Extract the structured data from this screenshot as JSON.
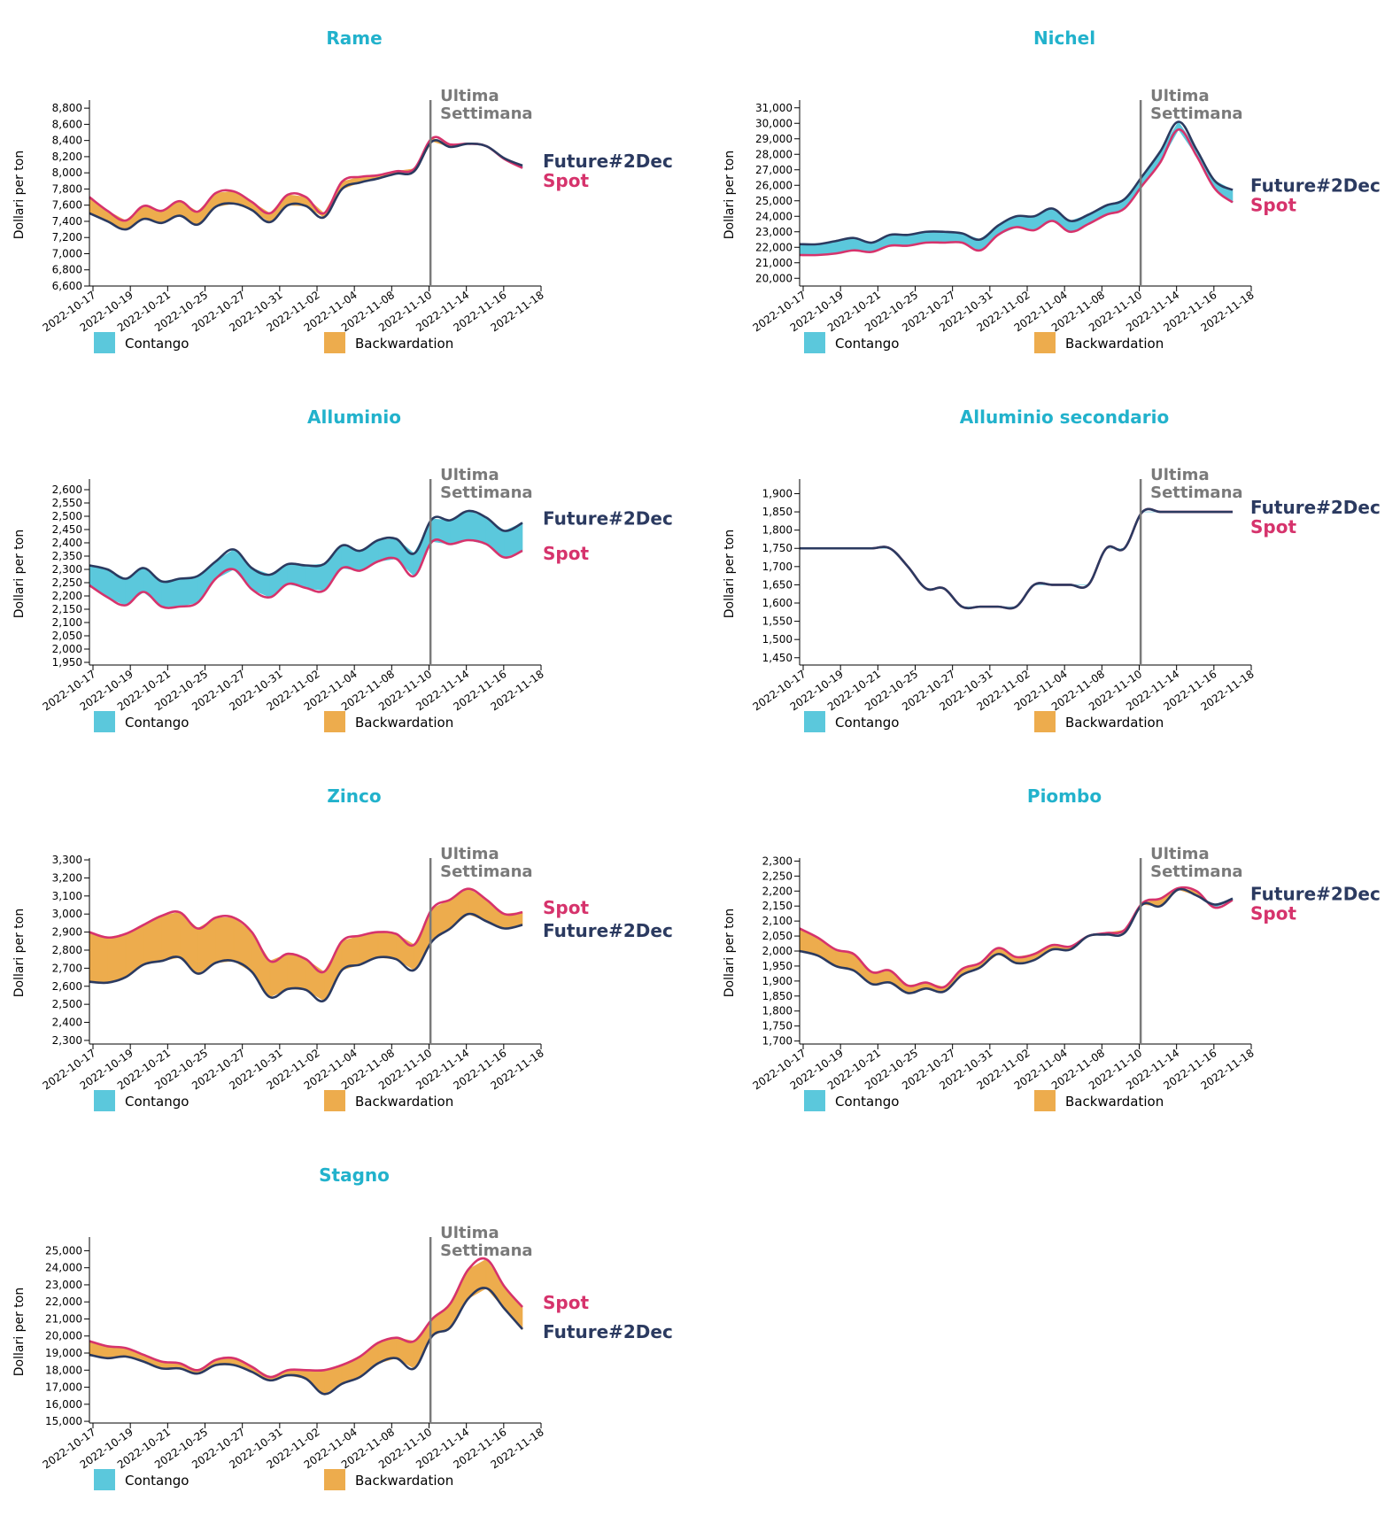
{
  "colors": {
    "title": "#22b2cc",
    "future": "#2b3a60",
    "spot": "#d6336c",
    "contango": "#5bc8dc",
    "backwardation": "#edac4d",
    "marker": "#7a7a7a"
  },
  "common": {
    "y_label": "Dollari per ton",
    "marker_line1": "Ultima",
    "marker_line2": "Settimana",
    "legend_contango": "Contango",
    "legend_backwardation": "Backwardation",
    "future_label": "Future#2Dec",
    "spot_label": "Spot",
    "marker_date_index": 19,
    "x_tick_labels": [
      "2022-10-17",
      "2022-10-19",
      "2022-10-21",
      "2022-10-25",
      "2022-10-27",
      "2022-10-31",
      "2022-11-02",
      "2022-11-04",
      "2022-11-08",
      "2022-11-10",
      "2022-11-14",
      "2022-11-16",
      "2022-11-18"
    ]
  },
  "chart_data": [
    {
      "type": "area",
      "title": "Rame",
      "ylabel": "Dollari per ton",
      "ylim": [
        6600,
        8900
      ],
      "ytick_step": 200,
      "x": [
        "2022-10-17",
        "2022-10-18",
        "2022-10-19",
        "2022-10-20",
        "2022-10-21",
        "2022-10-24",
        "2022-10-25",
        "2022-10-26",
        "2022-10-27",
        "2022-10-28",
        "2022-10-31",
        "2022-11-01",
        "2022-11-02",
        "2022-11-03",
        "2022-11-04",
        "2022-11-07",
        "2022-11-08",
        "2022-11-09",
        "2022-11-10",
        "2022-11-11",
        "2022-11-14",
        "2022-11-15",
        "2022-11-16",
        "2022-11-17",
        "2022-11-18"
      ],
      "series": [
        {
          "name": "Future#2Dec",
          "values": [
            7500,
            7400,
            7300,
            7430,
            7380,
            7470,
            7360,
            7580,
            7620,
            7540,
            7390,
            7600,
            7590,
            7450,
            7800,
            7880,
            7930,
            7990,
            8020,
            8390,
            8320,
            8360,
            8330,
            8180,
            8090
          ]
        },
        {
          "name": "Spot",
          "values": [
            7700,
            7530,
            7410,
            7590,
            7530,
            7650,
            7520,
            7750,
            7770,
            7640,
            7500,
            7730,
            7700,
            7500,
            7890,
            7950,
            7970,
            8020,
            8050,
            8430,
            8350,
            8360,
            8330,
            8170,
            8060
          ]
        }
      ]
    },
    {
      "type": "area",
      "title": "Nichel",
      "ylabel": "Dollari per ton",
      "ylim": [
        19500,
        31500
      ],
      "ytick_step": 1000,
      "x": [
        "2022-10-17",
        "2022-10-18",
        "2022-10-19",
        "2022-10-20",
        "2022-10-21",
        "2022-10-24",
        "2022-10-25",
        "2022-10-26",
        "2022-10-27",
        "2022-10-28",
        "2022-10-31",
        "2022-11-01",
        "2022-11-02",
        "2022-11-03",
        "2022-11-04",
        "2022-11-07",
        "2022-11-08",
        "2022-11-09",
        "2022-11-10",
        "2022-11-11",
        "2022-11-14",
        "2022-11-15",
        "2022-11-16",
        "2022-11-17",
        "2022-11-18"
      ],
      "series": [
        {
          "name": "Future#2Dec",
          "values": [
            22200,
            22200,
            22400,
            22600,
            22300,
            22800,
            22800,
            23000,
            23000,
            22900,
            22500,
            23400,
            24000,
            24000,
            24500,
            23700,
            24100,
            24700,
            25100,
            26600,
            28200,
            30100,
            28300,
            26300,
            25700
          ]
        },
        {
          "name": "Spot",
          "values": [
            21500,
            21500,
            21600,
            21800,
            21700,
            22100,
            22100,
            22300,
            22300,
            22300,
            21800,
            22800,
            23300,
            23100,
            23700,
            23000,
            23500,
            24100,
            24500,
            26000,
            27500,
            29600,
            27900,
            25800,
            24900
          ]
        }
      ]
    },
    {
      "type": "area",
      "title": "Alluminio",
      "ylabel": "Dollari per ton",
      "ylim": [
        1940,
        2640
      ],
      "ytick_step": 50,
      "x": [
        "2022-10-17",
        "2022-10-18",
        "2022-10-19",
        "2022-10-20",
        "2022-10-21",
        "2022-10-24",
        "2022-10-25",
        "2022-10-26",
        "2022-10-27",
        "2022-10-28",
        "2022-10-31",
        "2022-11-01",
        "2022-11-02",
        "2022-11-03",
        "2022-11-04",
        "2022-11-07",
        "2022-11-08",
        "2022-11-09",
        "2022-11-10",
        "2022-11-11",
        "2022-11-14",
        "2022-11-15",
        "2022-11-16",
        "2022-11-17",
        "2022-11-18"
      ],
      "series": [
        {
          "name": "Future#2Dec",
          "values": [
            2315,
            2300,
            2265,
            2305,
            2255,
            2265,
            2275,
            2330,
            2375,
            2305,
            2280,
            2320,
            2315,
            2320,
            2390,
            2370,
            2410,
            2415,
            2360,
            2490,
            2485,
            2520,
            2495,
            2445,
            2475
          ]
        },
        {
          "name": "Spot",
          "values": [
            2240,
            2195,
            2165,
            2215,
            2160,
            2160,
            2175,
            2265,
            2300,
            2225,
            2195,
            2245,
            2230,
            2220,
            2305,
            2295,
            2330,
            2340,
            2275,
            2405,
            2395,
            2410,
            2395,
            2345,
            2370
          ]
        }
      ]
    },
    {
      "type": "area",
      "title": "Alluminio secondario",
      "ylabel": "Dollari per ton",
      "ylim": [
        1430,
        1940
      ],
      "ytick_step": 50,
      "x": [
        "2022-10-17",
        "2022-10-18",
        "2022-10-19",
        "2022-10-20",
        "2022-10-21",
        "2022-10-24",
        "2022-10-25",
        "2022-10-26",
        "2022-10-27",
        "2022-10-28",
        "2022-10-31",
        "2022-11-01",
        "2022-11-02",
        "2022-11-03",
        "2022-11-04",
        "2022-11-07",
        "2022-11-08",
        "2022-11-09",
        "2022-11-10",
        "2022-11-11",
        "2022-11-14",
        "2022-11-15",
        "2022-11-16",
        "2022-11-17",
        "2022-11-18"
      ],
      "series": [
        {
          "name": "Future#2Dec",
          "values": [
            1750,
            1750,
            1750,
            1750,
            1750,
            1750,
            1700,
            1640,
            1640,
            1590,
            1590,
            1590,
            1590,
            1650,
            1650,
            1650,
            1650,
            1750,
            1750,
            1850,
            1850,
            1850,
            1850,
            1850,
            1850
          ]
        },
        {
          "name": "Spot",
          "values": [
            1750,
            1750,
            1750,
            1750,
            1750,
            1750,
            1700,
            1640,
            1640,
            1590,
            1590,
            1590,
            1590,
            1650,
            1650,
            1650,
            1650,
            1750,
            1750,
            1850,
            1850,
            1850,
            1850,
            1850,
            1850
          ]
        }
      ]
    },
    {
      "type": "area",
      "title": "Zinco",
      "ylabel": "Dollari per ton",
      "ylim": [
        2280,
        3310
      ],
      "ytick_step": 100,
      "x": [
        "2022-10-17",
        "2022-10-18",
        "2022-10-19",
        "2022-10-20",
        "2022-10-21",
        "2022-10-24",
        "2022-10-25",
        "2022-10-26",
        "2022-10-27",
        "2022-10-28",
        "2022-10-31",
        "2022-11-01",
        "2022-11-02",
        "2022-11-03",
        "2022-11-04",
        "2022-11-07",
        "2022-11-08",
        "2022-11-09",
        "2022-11-10",
        "2022-11-11",
        "2022-11-14",
        "2022-11-15",
        "2022-11-16",
        "2022-11-17",
        "2022-11-18"
      ],
      "series": [
        {
          "name": "Future#2Dec",
          "values": [
            2625,
            2620,
            2650,
            2720,
            2740,
            2760,
            2670,
            2730,
            2740,
            2680,
            2540,
            2585,
            2580,
            2520,
            2690,
            2720,
            2760,
            2750,
            2690,
            2850,
            2920,
            3000,
            2960,
            2920,
            2940
          ]
        },
        {
          "name": "Spot",
          "values": [
            2900,
            2870,
            2890,
            2940,
            2990,
            3010,
            2920,
            2980,
            2980,
            2900,
            2740,
            2780,
            2750,
            2680,
            2850,
            2880,
            2900,
            2890,
            2830,
            3030,
            3080,
            3140,
            3080,
            3000,
            3010
          ]
        }
      ]
    },
    {
      "type": "area",
      "title": "Piombo",
      "ylabel": "Dollari per ton",
      "ylim": [
        1690,
        2310
      ],
      "ytick_step": 50,
      "x": [
        "2022-10-17",
        "2022-10-18",
        "2022-10-19",
        "2022-10-20",
        "2022-10-21",
        "2022-10-24",
        "2022-10-25",
        "2022-10-26",
        "2022-10-27",
        "2022-10-28",
        "2022-10-31",
        "2022-11-01",
        "2022-11-02",
        "2022-11-03",
        "2022-11-04",
        "2022-11-07",
        "2022-11-08",
        "2022-11-09",
        "2022-11-10",
        "2022-11-11",
        "2022-11-14",
        "2022-11-15",
        "2022-11-16",
        "2022-11-17",
        "2022-11-18"
      ],
      "series": [
        {
          "name": "Future#2Dec",
          "values": [
            2000,
            1985,
            1950,
            1935,
            1890,
            1895,
            1860,
            1875,
            1865,
            1920,
            1945,
            1990,
            1960,
            1970,
            2005,
            2005,
            2050,
            2055,
            2060,
            2155,
            2150,
            2205,
            2185,
            2155,
            2175
          ]
        },
        {
          "name": "Spot",
          "values": [
            2075,
            2045,
            2005,
            1990,
            1930,
            1935,
            1885,
            1895,
            1880,
            1940,
            1960,
            2010,
            1980,
            1990,
            2020,
            2015,
            2050,
            2060,
            2070,
            2160,
            2175,
            2210,
            2200,
            2145,
            2170
          ]
        }
      ]
    },
    {
      "type": "area",
      "title": "Stagno",
      "ylabel": "Dollari per ton",
      "ylim": [
        14900,
        25800
      ],
      "ytick_step": 1000,
      "x": [
        "2022-10-17",
        "2022-10-18",
        "2022-10-19",
        "2022-10-20",
        "2022-10-21",
        "2022-10-24",
        "2022-10-25",
        "2022-10-26",
        "2022-10-27",
        "2022-10-28",
        "2022-10-31",
        "2022-11-01",
        "2022-11-02",
        "2022-11-03",
        "2022-11-04",
        "2022-11-07",
        "2022-11-08",
        "2022-11-09",
        "2022-11-10",
        "2022-11-11",
        "2022-11-14",
        "2022-11-15",
        "2022-11-16",
        "2022-11-17",
        "2022-11-18"
      ],
      "series": [
        {
          "name": "Future#2Dec",
          "values": [
            18900,
            18700,
            18800,
            18500,
            18100,
            18100,
            17800,
            18300,
            18300,
            17900,
            17400,
            17700,
            17500,
            16600,
            17200,
            17600,
            18400,
            18700,
            18100,
            20000,
            20500,
            22200,
            22800,
            21600,
            20400
          ]
        },
        {
          "name": "Spot",
          "values": [
            19700,
            19400,
            19300,
            18900,
            18500,
            18400,
            18000,
            18600,
            18700,
            18200,
            17600,
            18000,
            18000,
            18000,
            18300,
            18800,
            19600,
            19900,
            19700,
            21000,
            21900,
            23900,
            24500,
            22900,
            21700
          ]
        }
      ]
    }
  ]
}
